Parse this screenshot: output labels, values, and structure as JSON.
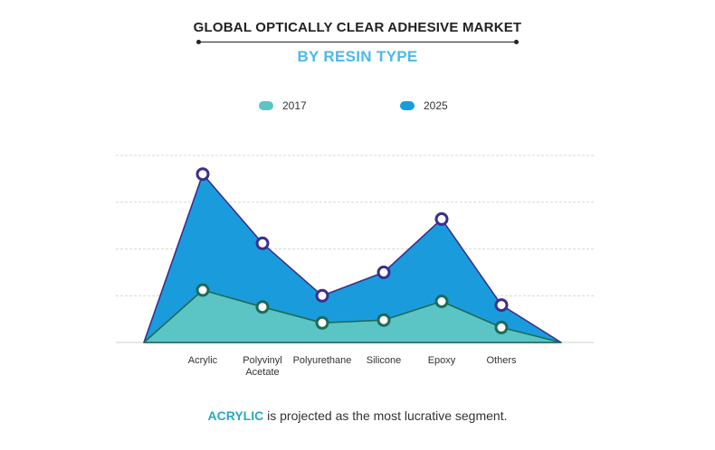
{
  "header": {
    "title": "GLOBAL OPTICALLY CLEAR ADHESIVE MARKET",
    "subtitle": "BY RESIN TYPE"
  },
  "colors": {
    "series_2017": "#5bc4c4",
    "series_2025": "#1a9cdc",
    "outline_2017": "#1d6b5a",
    "outline_2025": "#3b2f8f",
    "subtitle": "#4db8ea"
  },
  "footer": {
    "accent": "ACRYLIC",
    "rest": " is projected as the most lucrative segment."
  },
  "chart_data": {
    "type": "area",
    "categories": [
      "Acrylic",
      "Polyvinyl Acetate",
      "Polyurethane",
      "Silicone",
      "Epoxy",
      "Others"
    ],
    "series": [
      {
        "name": "2017",
        "values": [
          56,
          38,
          21,
          24,
          44,
          16
        ]
      },
      {
        "name": "2025",
        "values": [
          180,
          106,
          50,
          75,
          132,
          40
        ]
      }
    ],
    "ylim": [
      0,
      200
    ],
    "grid": true,
    "legend": "top-center"
  }
}
